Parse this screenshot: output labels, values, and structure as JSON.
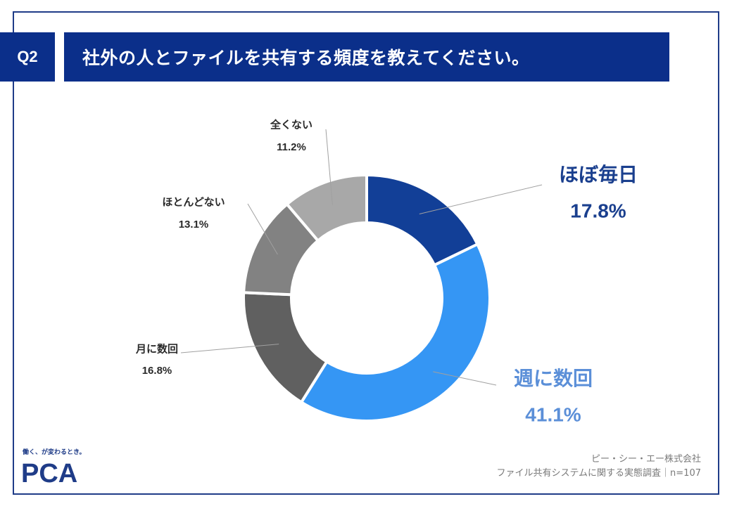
{
  "header": {
    "badge": "Q2",
    "question": "社外の人とファイルを共有する頻度を教えてください。"
  },
  "chart_data": {
    "type": "pie",
    "categories": [
      "ほぼ毎日",
      "週に数回",
      "月に数回",
      "ほとんどない",
      "全くない"
    ],
    "values": [
      17.8,
      41.1,
      16.8,
      13.1,
      11.2
    ],
    "value_labels": [
      "17.8%",
      "41.1%",
      "16.8%",
      "13.1%",
      "11.2%"
    ],
    "colors": [
      "#123f97",
      "#3596f4",
      "#606060",
      "#828282",
      "#a8a8a8"
    ],
    "label_colors": [
      "#1a3f8e",
      "#5b8fd8",
      "#2a2a2a",
      "#2a2a2a",
      "#2a2a2a"
    ],
    "donut": true,
    "title": "",
    "legend": "none"
  },
  "brand": {
    "tagline": "働く、が変わるとき。",
    "logo": "PCA"
  },
  "footer": {
    "company": "ピー・シー・エー株式会社",
    "survey": "ファイル共有システムに関する実態調査｜n=107"
  }
}
